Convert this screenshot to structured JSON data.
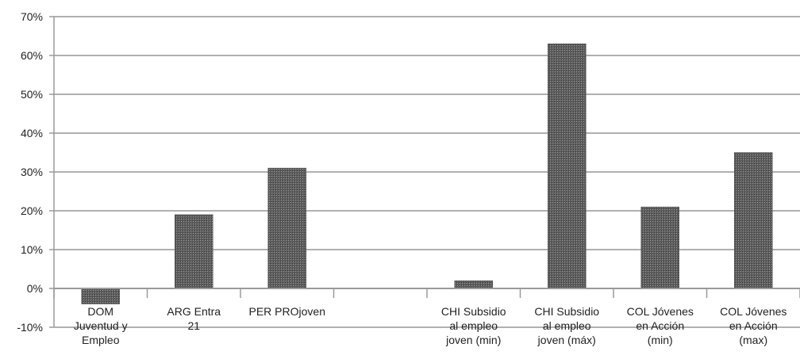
{
  "chart_data": {
    "type": "bar",
    "title": "",
    "xlabel": "",
    "ylabel": "",
    "ylim": [
      -0.1,
      0.7
    ],
    "y_ticks": [
      {
        "value": 0.7,
        "label": "70%"
      },
      {
        "value": 0.6,
        "label": "60%"
      },
      {
        "value": 0.5,
        "label": "50%"
      },
      {
        "value": 0.4,
        "label": "40%"
      },
      {
        "value": 0.3,
        "label": "30%"
      },
      {
        "value": 0.2,
        "label": "20%"
      },
      {
        "value": 0.1,
        "label": "10%"
      },
      {
        "value": 0.0,
        "label": "0%"
      },
      {
        "value": -0.1,
        "label": "-10%"
      }
    ],
    "grid": true,
    "legend": "none",
    "bar_fill": "#6f6f6f",
    "grid_color": "#b0b0b0",
    "categories": [
      [
        "DOM",
        "Juventud y",
        "Empleo"
      ],
      [
        "ARG    Entra",
        "21"
      ],
      [
        "PER PROjoven"
      ],
      [
        ""
      ],
      [
        "CHI  Subsidio",
        "al empleo",
        "joven (min)"
      ],
      [
        "CHI Subsidio",
        "al empleo",
        "joven (máx)"
      ],
      [
        "COL Jóvenes",
        "en Acción",
        "(min)"
      ],
      [
        "COL Jóvenes",
        "en Acción",
        "(max)"
      ]
    ],
    "values": [
      -0.04,
      0.19,
      0.31,
      null,
      0.02,
      0.63,
      0.21,
      0.35
    ]
  }
}
